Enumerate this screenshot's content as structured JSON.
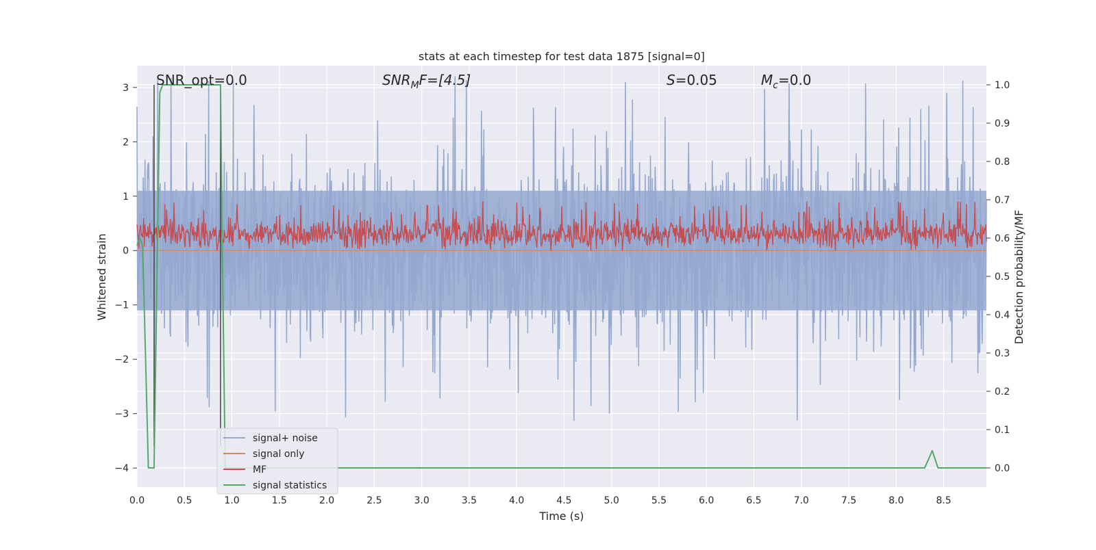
{
  "chart_data": {
    "type": "line",
    "title": "stats at each timestep for test data 1875 [signal=0]",
    "xlabel": "Time (s)",
    "ylabel_left": "Whitened strain",
    "ylabel_right": "Detection probability/MF",
    "xlim": [
      0.0,
      8.95
    ],
    "ylim_left": [
      -4.35,
      3.4
    ],
    "ylim_right": [
      -0.05,
      1.05
    ],
    "x_ticks": [
      "0.0",
      "0.5",
      "1.0",
      "1.5",
      "2.0",
      "2.5",
      "3.0",
      "3.5",
      "4.0",
      "4.5",
      "5.0",
      "5.5",
      "6.0",
      "6.5",
      "7.0",
      "7.5",
      "8.0",
      "8.5"
    ],
    "y_ticks_left": [
      "−4",
      "−3",
      "−2",
      "−1",
      "0",
      "1",
      "2",
      "3"
    ],
    "y_ticks_right": [
      "0.0",
      "0.1",
      "0.2",
      "0.3",
      "0.4",
      "0.5",
      "0.6",
      "0.7",
      "0.8",
      "0.9",
      "1.0"
    ],
    "grid": true,
    "legend_position": "lower-left",
    "colors": {
      "background": "#eaeaf2",
      "grid": "#ffffff",
      "signal_noise": "#94a8d0",
      "signal_only": "#dd8452",
      "mf": "#c44e52",
      "signal_statistics": "#55a868",
      "marker_line": "#444444"
    },
    "annotations": {
      "snr_opt": "SNR_opt=0.0",
      "snr_mf_main": "SNR",
      "snr_mf_sub": "M",
      "snr_mf_rest": "F=[4.5]",
      "s_main": "S",
      "s_rest": "=0.05",
      "mc_main": "M",
      "mc_sub": "c",
      "mc_rest": "=0.0"
    },
    "series": [
      {
        "name": "signal+ noise",
        "axis": "left",
        "style": "dense noise, approx. range -4.0 to 3.3, mostly within -1.8 to 1.8"
      },
      {
        "name": "signal only",
        "axis": "left",
        "style": "flat near 0"
      },
      {
        "name": "MF",
        "axis": "left",
        "style": "dense noise, approx. range 0.0 to 0.9, centered near 0.3"
      },
      {
        "name": "signal statistics",
        "axis": "right",
        "x": [
          0.0,
          0.03,
          0.06,
          0.12,
          0.18,
          0.24,
          0.27,
          0.3,
          0.88,
          0.9,
          0.93,
          0.96,
          8.3,
          8.38,
          8.44,
          8.95
        ],
        "y": [
          0.58,
          0.6,
          0.58,
          0.0,
          0.0,
          0.98,
          1.0,
          1.0,
          1.0,
          0.55,
          0.0,
          0.0,
          0.0,
          0.045,
          0.0,
          0.0
        ]
      }
    ],
    "vertical_lines_x": [
      0.18,
      0.88
    ]
  }
}
